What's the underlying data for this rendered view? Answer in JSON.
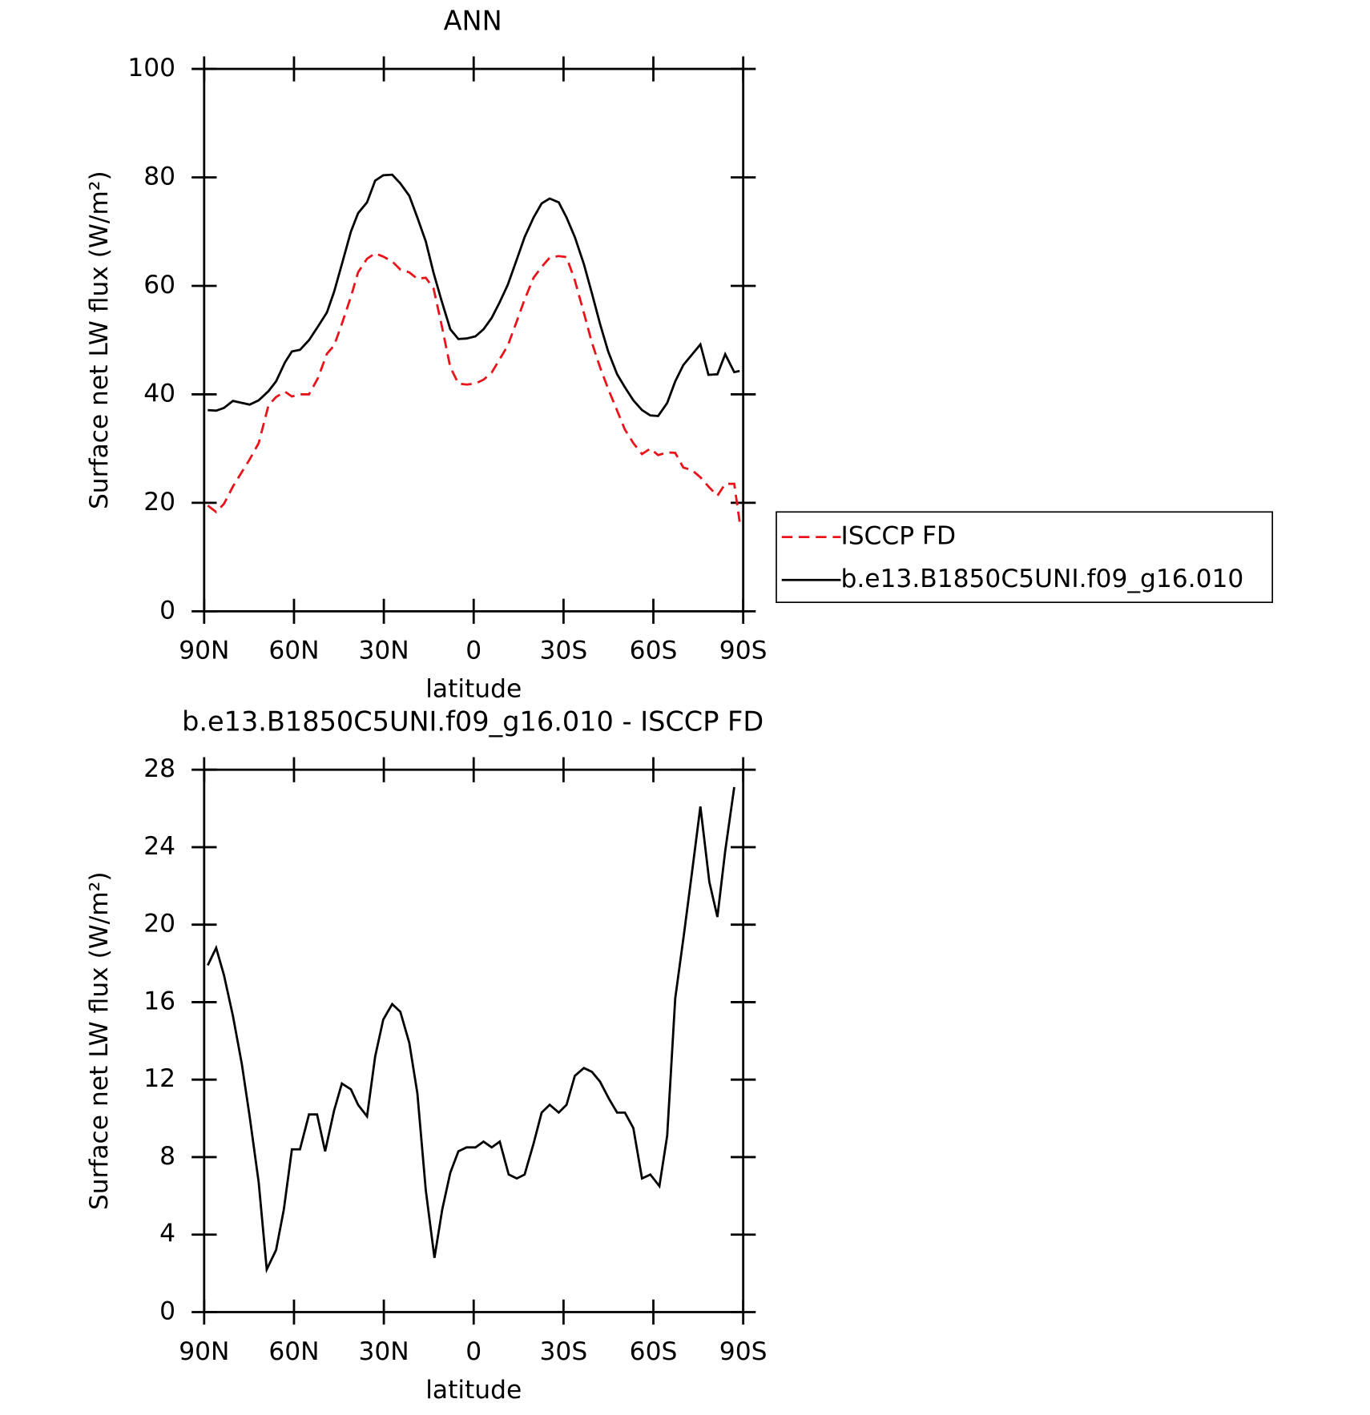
{
  "chart_data": [
    {
      "type": "line",
      "title": "ANN",
      "xlabel": "latitude",
      "ylabel": "Surface net LW flux (W/m²)",
      "x": [
        88.8,
        86,
        83.4,
        80.4,
        74.8,
        71.8,
        68.5,
        66,
        63,
        60.7,
        58,
        55,
        52,
        49,
        46.6,
        44,
        41,
        38.6,
        35.6,
        32.9,
        30.2,
        27.2,
        24.5,
        21.5,
        18.8,
        16,
        13.4,
        10.8,
        7.8,
        5.1,
        2.4,
        -0.6,
        -3.3,
        -6,
        -8.7,
        -11.4,
        -14.4,
        -17,
        -20,
        -22.7,
        -25.4,
        -28.4,
        -31,
        -33.8,
        -36.8,
        -39.5,
        -42.2,
        -44.9,
        -47.9,
        -50.5,
        -53.3,
        -56.2,
        -59,
        -61.6,
        -64.6,
        -67.3,
        -70,
        -73,
        -75.7,
        -78.4,
        -81.4,
        -84,
        -87,
        -88.8
      ],
      "series": [
        {
          "name": "ISCCP FD",
          "color": "#e8141a",
          "dash": true,
          "values": [
            19.5,
            18.3,
            19.8,
            23,
            28,
            31,
            38,
            39.5,
            40.5,
            39.6,
            40,
            40,
            43,
            47.5,
            49,
            53,
            58,
            62.5,
            65,
            66,
            65.4,
            64.5,
            63,
            62.5,
            61.3,
            61.5,
            59.5,
            53,
            45,
            42,
            41.8,
            42,
            42.7,
            44,
            46.5,
            49,
            53.5,
            57.5,
            61.5,
            63.5,
            65.2,
            65.5,
            65.3,
            61,
            55,
            49.5,
            45,
            41,
            37,
            33.5,
            31,
            29,
            30,
            28.8,
            29.3,
            29.2,
            26.5,
            26,
            24.7,
            23,
            21.3,
            23.5,
            23.5,
            16.5
          ]
        },
        {
          "name": "b.e13.B1850C5UNI.f09_g16.010",
          "color": "#000000",
          "dash": false,
          "values": [
            37.1,
            37,
            37.5,
            38.8,
            38.1,
            38.9,
            40.6,
            42.4,
            45.9,
            47.9,
            48.2,
            50,
            52.5,
            55.1,
            58.9,
            64,
            70,
            73.4,
            75.4,
            79.4,
            80.4,
            80.5,
            78.9,
            76.6,
            72.6,
            68.2,
            62.4,
            57.4,
            52,
            50.2,
            50.3,
            50.7,
            52,
            54.1,
            57,
            60.2,
            64.9,
            69,
            72.6,
            75.2,
            76.1,
            75.4,
            72.6,
            69,
            64,
            58.6,
            53,
            47.9,
            43.7,
            41.3,
            38.9,
            37.1,
            36.1,
            36,
            38.4,
            42.4,
            45.4,
            47.4,
            49.2,
            43.6,
            43.7,
            47.4,
            44.1,
            44.3
          ]
        }
      ],
      "xlim": [
        90,
        -90
      ],
      "xticks": [
        {
          "value": 90,
          "label": "90N"
        },
        {
          "value": 60,
          "label": "60N"
        },
        {
          "value": 30,
          "label": "30N"
        },
        0,
        {
          "value": -30,
          "label": "30S"
        },
        {
          "value": -60,
          "label": "60S"
        },
        {
          "value": -90,
          "label": "90S"
        }
      ],
      "ylim": [
        0,
        100
      ],
      "yticks": [
        0,
        20,
        40,
        60,
        80,
        100
      ],
      "legend": "right"
    },
    {
      "type": "line",
      "title": "b.e13.B1850C5UNI.f09_g16.010 - ISCCP FD",
      "xlabel": "latitude",
      "ylabel": "Surface net LW flux (W/m²)",
      "x": [
        88.8,
        86,
        83.4,
        80.4,
        77.4,
        74.8,
        71.8,
        69.1,
        66,
        63.4,
        60.7,
        58,
        55,
        52.3,
        49.6,
        46.6,
        44,
        41,
        38.6,
        35.6,
        32.9,
        30.2,
        27.2,
        24.5,
        21.5,
        18.8,
        16,
        13.1,
        10.5,
        7.8,
        5.1,
        2.4,
        -0.6,
        -3.3,
        -6,
        -8.7,
        -11.7,
        -14.4,
        -17,
        -20,
        -22.7,
        -25.4,
        -28.4,
        -31,
        -33.8,
        -36.8,
        -39.5,
        -42.2,
        -45.2,
        -47.9,
        -50.5,
        -53.3,
        -56.2,
        -59,
        -62,
        -64.6,
        -67.3,
        -70.3,
        -73,
        -75.7,
        -78.7,
        -81.4,
        -84,
        -87
      ],
      "series": [
        {
          "color": "#000000",
          "dash": false,
          "values": [
            17.9,
            18.8,
            17.4,
            15.3,
            12.8,
            10.1,
            6.7,
            2.2,
            3.2,
            5.3,
            8.4,
            8.4,
            10.2,
            10.2,
            8.3,
            10.4,
            11.8,
            11.5,
            10.7,
            10.1,
            13.2,
            15.1,
            15.9,
            15.5,
            13.9,
            11.3,
            6.3,
            2.8,
            5.3,
            7.2,
            8.3,
            8.5,
            8.5,
            8.8,
            8.5,
            8.8,
            7.1,
            6.9,
            7.1,
            8.7,
            10.3,
            10.7,
            10.3,
            10.7,
            12.2,
            12.6,
            12.4,
            11.9,
            11,
            10.3,
            10.3,
            9.5,
            6.9,
            7.1,
            6.5,
            9.1,
            16.2,
            19.6,
            22.8,
            26.1,
            22.2,
            20.4,
            23.8,
            27.1
          ]
        }
      ],
      "xlim": [
        90,
        -90
      ],
      "xticks": [
        {
          "value": 90,
          "label": "90N"
        },
        {
          "value": 60,
          "label": "60N"
        },
        {
          "value": 30,
          "label": "30N"
        },
        0,
        {
          "value": -30,
          "label": "30S"
        },
        {
          "value": -60,
          "label": "60S"
        },
        {
          "value": -90,
          "label": "90S"
        }
      ],
      "ylim": [
        0,
        28
      ],
      "yticks": [
        0,
        4,
        8,
        12,
        16,
        20,
        24,
        28
      ]
    }
  ]
}
